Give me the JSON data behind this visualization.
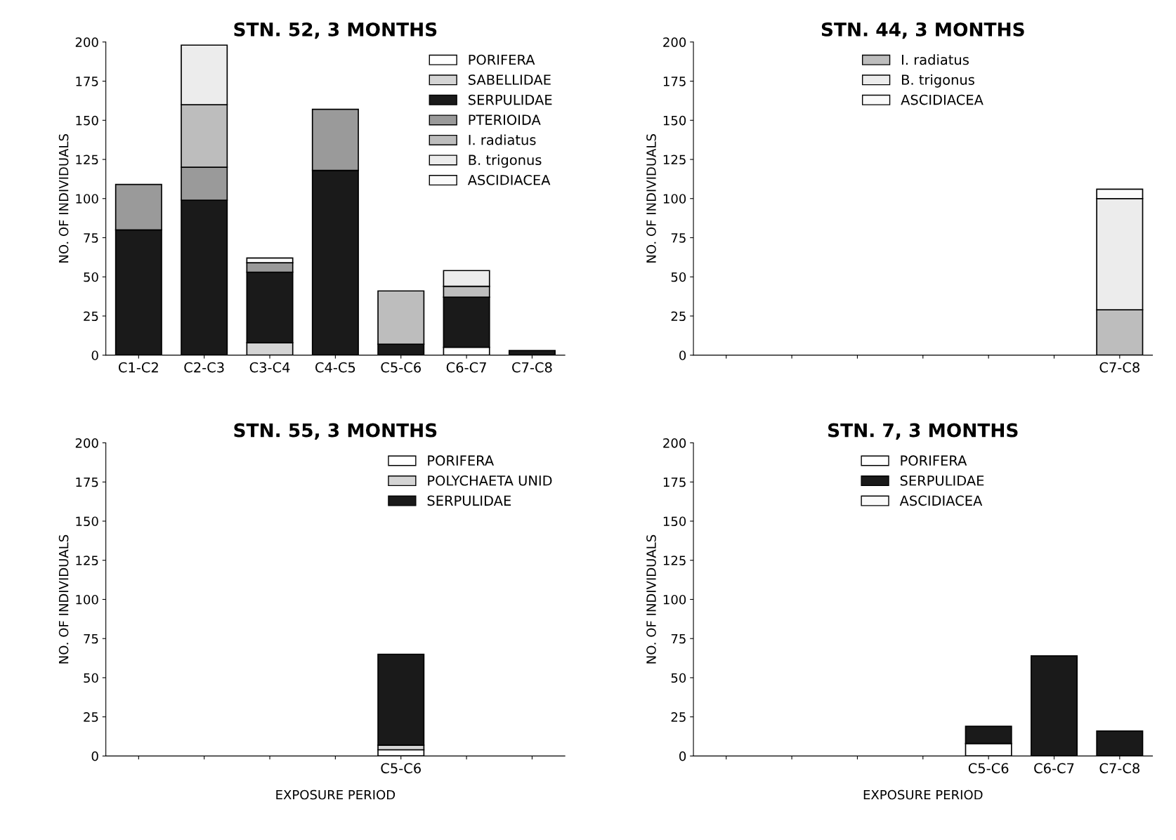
{
  "chart_data": [
    {
      "type": "bar",
      "stacked": true,
      "title": "STN. 52, 3 MONTHS",
      "ylabel": "NO. OF INDIVIDUALS",
      "categories": [
        "C1-C2",
        "C2-C3",
        "C3-C4",
        "C4-C5",
        "C5-C6",
        "C6-C7",
        "C7-C8"
      ],
      "ylim": [
        0,
        200
      ],
      "yticks": [
        0,
        25,
        50,
        75,
        100,
        125,
        150,
        175,
        200
      ],
      "legend": "top right",
      "grid": false,
      "series": [
        {
          "name": "PORIFERA",
          "color": "#ffffff",
          "values": [
            null,
            null,
            null,
            null,
            null,
            5,
            null
          ]
        },
        {
          "name": "SABELLIDAE",
          "color": "#d4d4d4",
          "values": [
            null,
            null,
            8,
            null,
            null,
            null,
            null
          ]
        },
        {
          "name": "SERPULIDAE",
          "color": "#1a1a1a",
          "values": [
            80,
            99,
            45,
            118,
            7,
            32,
            3
          ]
        },
        {
          "name": "PTERIOIDA",
          "color": "#9a9a9a",
          "values": [
            29,
            21,
            6,
            39,
            null,
            null,
            null
          ]
        },
        {
          "name": "I. radiatus",
          "color": "#bdbdbd",
          "values": [
            null,
            40,
            null,
            null,
            34,
            7,
            null
          ]
        },
        {
          "name": "B. trigonus",
          "color": "#ececec",
          "values": [
            null,
            38,
            null,
            null,
            null,
            10,
            null
          ]
        },
        {
          "name": "ASCIDIACEA",
          "color": "#fafafa",
          "values": [
            null,
            null,
            3,
            null,
            null,
            null,
            null
          ]
        }
      ]
    },
    {
      "type": "bar",
      "stacked": true,
      "title": "STN. 44, 3 MONTHS",
      "ylabel": "NO. OF INDIVIDUALS",
      "categories": [
        null,
        null,
        null,
        null,
        null,
        null,
        "C7-C8"
      ],
      "ylim": [
        0,
        200
      ],
      "yticks": [
        0,
        25,
        50,
        75,
        100,
        125,
        150,
        175,
        200
      ],
      "legend": "top",
      "grid": false,
      "series": [
        {
          "name": "I. radiatus",
          "color": "#bdbdbd",
          "values": [
            null,
            null,
            null,
            null,
            null,
            null,
            29
          ]
        },
        {
          "name": "B. trigonus",
          "color": "#ececec",
          "values": [
            null,
            null,
            null,
            null,
            null,
            null,
            71
          ]
        },
        {
          "name": "ASCIDIACEA",
          "color": "#fafafa",
          "values": [
            null,
            null,
            null,
            null,
            null,
            null,
            6
          ]
        }
      ]
    },
    {
      "type": "bar",
      "stacked": true,
      "title": "STN. 55, 3 MONTHS",
      "ylabel": "NO. OF INDIVIDUALS",
      "xlabel": "EXPOSURE PERIOD",
      "categories": [
        null,
        null,
        null,
        null,
        "C5-C6",
        null,
        null
      ],
      "ylim": [
        0,
        200
      ],
      "yticks": [
        0,
        25,
        50,
        75,
        100,
        125,
        150,
        175,
        200
      ],
      "legend": "top right",
      "grid": false,
      "series": [
        {
          "name": "PORIFERA",
          "color": "#ffffff",
          "values": [
            null,
            null,
            null,
            null,
            4,
            null,
            null
          ]
        },
        {
          "name": "POLYCHAETA UNID",
          "color": "#d4d4d4",
          "values": [
            null,
            null,
            null,
            null,
            3,
            null,
            null
          ]
        },
        {
          "name": "SERPULIDAE",
          "color": "#1a1a1a",
          "values": [
            null,
            null,
            null,
            null,
            58,
            null,
            null
          ]
        }
      ]
    },
    {
      "type": "bar",
      "stacked": true,
      "title": "STN. 7, 3 MONTHS",
      "ylabel": "NO. OF INDIVIDUALS",
      "xlabel": "EXPOSURE PERIOD",
      "categories": [
        null,
        null,
        null,
        null,
        "C5-C6",
        "C6-C7",
        "C7-C8"
      ],
      "ylim": [
        0,
        200
      ],
      "yticks": [
        0,
        25,
        50,
        75,
        100,
        125,
        150,
        175,
        200
      ],
      "legend": "top",
      "grid": false,
      "series": [
        {
          "name": "PORIFERA",
          "color": "#ffffff",
          "values": [
            null,
            null,
            null,
            null,
            8,
            null,
            null
          ]
        },
        {
          "name": "SERPULIDAE",
          "color": "#1a1a1a",
          "values": [
            null,
            null,
            null,
            null,
            11,
            64,
            16
          ]
        },
        {
          "name": "ASCIDIACEA",
          "color": "#fafafa",
          "values": [
            null,
            null,
            null,
            null,
            null,
            null,
            null
          ]
        }
      ]
    }
  ]
}
